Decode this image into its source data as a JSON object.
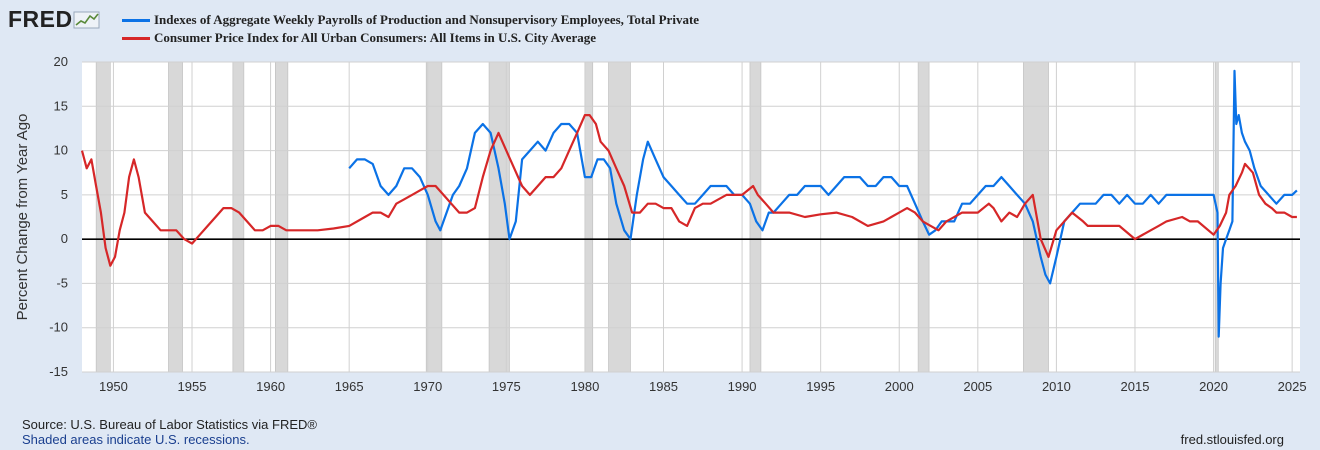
{
  "branding": {
    "logo_text": "FRED"
  },
  "source_text": "Source: U.S. Bureau of Labor Statistics via FRED®",
  "recession_note": "Shaded areas indicate U.S. recessions.",
  "site_url": "fred.stlouisfed.org",
  "colors": {
    "series1": "#0b72e6",
    "series2": "#d62728",
    "recession": "#d8d8d8",
    "zero_line": "#000000"
  },
  "chart_data": {
    "type": "line",
    "title": "",
    "xlabel": "",
    "ylabel": "Percent Change from Year Ago",
    "xlim": [
      1948,
      2025.5
    ],
    "ylim": [
      -15,
      20
    ],
    "grid": true,
    "legend": "top-left",
    "yticks": [
      -15,
      -10,
      -5,
      0,
      5,
      10,
      15,
      20
    ],
    "ytick_labels": [
      "-15",
      "-10",
      "-5",
      "0",
      "5",
      "10",
      "15",
      "20"
    ],
    "xticks": [
      1950,
      1955,
      1960,
      1965,
      1970,
      1975,
      1980,
      1985,
      1990,
      1995,
      2000,
      2005,
      2010,
      2015,
      2020,
      2025
    ],
    "xtick_labels": [
      "1950",
      "1955",
      "1960",
      "1965",
      "1970",
      "1975",
      "1980",
      "1985",
      "1990",
      "1995",
      "2000",
      "2005",
      "2010",
      "2015",
      "2020",
      "2025"
    ],
    "recessions": [
      [
        1948.9,
        1949.8
      ],
      [
        1953.5,
        1954.4
      ],
      [
        1957.6,
        1958.3
      ],
      [
        1960.3,
        1961.1
      ],
      [
        1969.9,
        1970.9
      ],
      [
        1973.9,
        1975.2
      ],
      [
        1980.0,
        1980.5
      ],
      [
        1981.5,
        1982.9
      ],
      [
        1990.5,
        1991.2
      ],
      [
        2001.2,
        2001.9
      ],
      [
        2007.9,
        2009.5
      ],
      [
        2020.1,
        2020.3
      ]
    ],
    "series": [
      {
        "name": "Indexes of Aggregate Weekly Payrolls of Production and Nonsupervisory Employees, Total Private",
        "color": "#0b72e6",
        "x": [
          1965.0,
          1965.5,
          1966.0,
          1966.5,
          1967.0,
          1967.5,
          1968.0,
          1968.5,
          1969.0,
          1969.5,
          1970.0,
          1970.5,
          1970.8,
          1971.2,
          1971.6,
          1972.0,
          1972.5,
          1973.0,
          1973.5,
          1974.0,
          1974.5,
          1974.9,
          1975.2,
          1975.6,
          1976.0,
          1976.5,
          1977.0,
          1977.5,
          1978.0,
          1978.5,
          1979.0,
          1979.5,
          1980.0,
          1980.4,
          1980.8,
          1981.2,
          1981.6,
          1982.0,
          1982.5,
          1982.9,
          1983.3,
          1983.7,
          1984.0,
          1984.5,
          1985.0,
          1985.5,
          1986.0,
          1986.5,
          1987.0,
          1987.5,
          1988.0,
          1988.5,
          1989.0,
          1989.5,
          1990.0,
          1990.5,
          1990.9,
          1991.3,
          1991.7,
          1992.0,
          1992.5,
          1993.0,
          1993.5,
          1994.0,
          1994.5,
          1995.0,
          1995.5,
          1996.0,
          1996.5,
          1997.0,
          1997.5,
          1998.0,
          1998.5,
          1999.0,
          1999.5,
          2000.0,
          2000.5,
          2001.0,
          2001.5,
          2001.9,
          2002.3,
          2002.7,
          2003.0,
          2003.5,
          2004.0,
          2004.5,
          2005.0,
          2005.5,
          2006.0,
          2006.5,
          2007.0,
          2007.5,
          2008.0,
          2008.5,
          2009.0,
          2009.3,
          2009.6,
          2010.0,
          2010.5,
          2011.0,
          2011.5,
          2012.0,
          2012.5,
          2013.0,
          2013.5,
          2014.0,
          2014.5,
          2015.0,
          2015.5,
          2016.0,
          2016.5,
          2017.0,
          2017.5,
          2018.0,
          2018.5,
          2019.0,
          2019.5,
          2020.0,
          2020.25,
          2020.33,
          2020.45,
          2020.6,
          2020.8,
          2021.0,
          2021.2,
          2021.33,
          2021.45,
          2021.6,
          2021.8,
          2022.0,
          2022.3,
          2022.6,
          2023.0,
          2023.5,
          2024.0,
          2024.5,
          2025.0,
          2025.3
        ],
        "values": [
          8,
          9,
          9,
          8.5,
          6,
          5,
          6,
          8,
          8,
          7,
          5,
          2,
          1,
          3,
          5,
          6,
          8,
          12,
          13,
          12,
          8,
          4,
          0,
          2,
          9,
          10,
          11,
          10,
          12,
          13,
          13,
          12,
          7,
          7,
          9,
          9,
          8,
          4,
          1,
          0,
          5,
          9,
          11,
          9,
          7,
          6,
          5,
          4,
          4,
          5,
          6,
          6,
          6,
          5,
          5,
          4,
          2,
          1,
          3,
          3,
          4,
          5,
          5,
          6,
          6,
          6,
          5,
          6,
          7,
          7,
          7,
          6,
          6,
          7,
          7,
          6,
          6,
          4,
          2,
          0.5,
          1,
          2,
          2,
          2,
          4,
          4,
          5,
          6,
          6,
          7,
          6,
          5,
          4,
          2,
          -2,
          -4,
          -5,
          -2,
          2,
          3,
          4,
          4,
          4,
          5,
          5,
          4,
          5,
          4,
          4,
          5,
          4,
          5,
          5,
          5,
          5,
          5,
          5,
          5,
          3,
          -11,
          -5,
          -1,
          0,
          1,
          2,
          19,
          13,
          14,
          12,
          11,
          10,
          8,
          6,
          5,
          4,
          5,
          5,
          5.5
        ]
      },
      {
        "name": "Consumer Price Index for All Urban Consumers: All Items in U.S. City Average",
        "color": "#d62728",
        "x": [
          1948.0,
          1948.3,
          1948.6,
          1948.9,
          1949.2,
          1949.5,
          1949.8,
          1950.1,
          1950.4,
          1950.7,
          1951.0,
          1951.3,
          1951.6,
          1952.0,
          1952.5,
          1953.0,
          1953.5,
          1954.0,
          1954.5,
          1955.0,
          1955.5,
          1956.0,
          1956.5,
          1957.0,
          1957.5,
          1958.0,
          1958.5,
          1959.0,
          1959.5,
          1960.0,
          1960.5,
          1961.0,
          1961.5,
          1962.0,
          1963.0,
          1964.0,
          1965.0,
          1966.0,
          1966.5,
          1967.0,
          1967.5,
          1968.0,
          1968.5,
          1969.0,
          1969.5,
          1970.0,
          1970.5,
          1971.0,
          1971.5,
          1972.0,
          1972.5,
          1973.0,
          1973.5,
          1974.0,
          1974.5,
          1975.0,
          1975.5,
          1976.0,
          1976.5,
          1977.0,
          1977.5,
          1978.0,
          1978.5,
          1979.0,
          1979.5,
          1980.0,
          1980.3,
          1980.7,
          1981.0,
          1981.5,
          1982.0,
          1982.5,
          1983.0,
          1983.5,
          1984.0,
          1984.5,
          1985.0,
          1985.5,
          1986.0,
          1986.5,
          1987.0,
          1987.5,
          1988.0,
          1989.0,
          1990.0,
          1990.7,
          1991.0,
          1991.5,
          1992.0,
          1993.0,
          1994.0,
          1995.0,
          1996.0,
          1997.0,
          1998.0,
          1999.0,
          2000.0,
          2000.5,
          2001.0,
          2001.5,
          2002.0,
          2002.5,
          2003.0,
          2004.0,
          2005.0,
          2005.7,
          2006.0,
          2006.5,
          2007.0,
          2007.5,
          2008.0,
          2008.5,
          2009.0,
          2009.5,
          2010.0,
          2011.0,
          2011.7,
          2012.0,
          2013.0,
          2014.0,
          2015.0,
          2016.0,
          2016.5,
          2017.0,
          2018.0,
          2018.5,
          2019.0,
          2020.0,
          2020.4,
          2020.8,
          2021.0,
          2021.4,
          2021.8,
          2022.0,
          2022.5,
          2022.9,
          2023.3,
          2023.7,
          2024.0,
          2024.5,
          2025.0,
          2025.3
        ],
        "values": [
          10,
          8,
          9,
          6,
          3,
          -1,
          -3,
          -2,
          1,
          3,
          7,
          9,
          7,
          3,
          2,
          1,
          1,
          1,
          0,
          -0.5,
          0.5,
          1.5,
          2.5,
          3.5,
          3.5,
          3,
          2,
          1,
          1,
          1.5,
          1.5,
          1,
          1,
          1,
          1,
          1.2,
          1.5,
          2.5,
          3,
          3,
          2.5,
          4,
          4.5,
          5,
          5.5,
          6,
          6,
          5,
          4,
          3,
          3,
          3.5,
          7,
          10,
          12,
          10,
          8,
          6,
          5,
          6,
          7,
          7,
          8,
          10,
          12,
          14,
          14,
          13,
          11,
          10,
          8,
          6,
          3,
          3,
          4,
          4,
          3.5,
          3.5,
          2,
          1.5,
          3.5,
          4,
          4,
          5,
          5,
          6,
          5,
          4,
          3,
          3,
          2.5,
          2.8,
          3,
          2.5,
          1.5,
          2,
          3,
          3.5,
          3,
          2,
          1.5,
          1,
          2,
          3,
          3,
          4,
          3.5,
          2,
          3,
          2.5,
          4,
          5,
          0,
          -2,
          1,
          3,
          2,
          1.5,
          1.5,
          1.5,
          0,
          1,
          1.5,
          2,
          2.5,
          2,
          2,
          0.5,
          1.5,
          3,
          5,
          6,
          7.5,
          8.5,
          7.5,
          5,
          4,
          3.5,
          3,
          3,
          2.5,
          2.5
        ]
      }
    ]
  }
}
